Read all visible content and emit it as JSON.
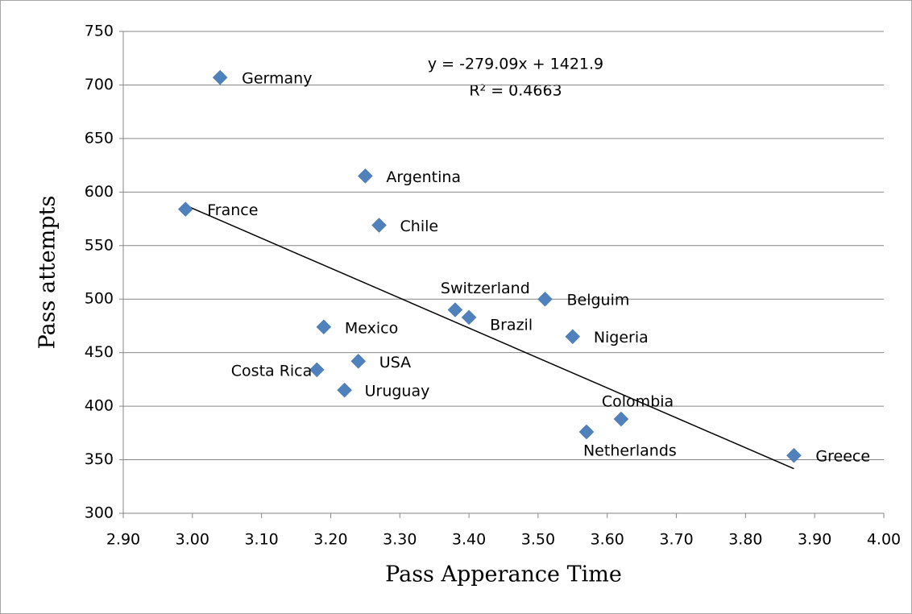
{
  "chart_data": {
    "type": "scatter",
    "x_label": "Pass Apperance Time",
    "y_label": "Pass attempts",
    "labels": [
      "Germany",
      "Argentina",
      "France",
      "Chile",
      "Switzerland",
      "Brazil",
      "Belguim",
      "Nigeria",
      "Mexico",
      "USA",
      "Costa Rica",
      "Uruguay",
      "Colombia",
      "Netherlands",
      "Greece"
    ],
    "x": [
      3.04,
      3.25,
      2.99,
      3.27,
      3.38,
      3.4,
      3.51,
      3.55,
      3.19,
      3.24,
      3.18,
      3.22,
      3.62,
      3.57,
      3.87
    ],
    "values": [
      707,
      615,
      584,
      569,
      490,
      483,
      500,
      465,
      474,
      442,
      434,
      415,
      388,
      376,
      354
    ],
    "color": "#4f81bd",
    "trendline": {
      "equation": "y = -279.09x + 1421.9",
      "r_squared": "R² = 0.4663",
      "color": "#000000"
    },
    "xlim": [
      2.9,
      4.0
    ],
    "xticks": [
      {
        "value": 2.9,
        "label": "2.90"
      },
      {
        "value": 3.0,
        "label": "3.00"
      },
      {
        "value": 3.1,
        "label": "3.10"
      },
      {
        "value": 3.2,
        "label": "3.20"
      },
      {
        "value": 3.3,
        "label": "3.30"
      },
      {
        "value": 3.4,
        "label": "3.40"
      },
      {
        "value": 3.5,
        "label": "3.50"
      },
      {
        "value": 3.6,
        "label": "3.60"
      },
      {
        "value": 3.7,
        "label": "3.70"
      },
      {
        "value": 3.8,
        "label": "3.80"
      },
      {
        "value": 3.9,
        "label": "3.90"
      },
      {
        "value": 4.0,
        "label": "4.00"
      }
    ],
    "ylim": [
      300,
      750
    ],
    "yticks": [
      300,
      350,
      400,
      450,
      500,
      550,
      600,
      650,
      700,
      750
    ],
    "grid": true
  }
}
